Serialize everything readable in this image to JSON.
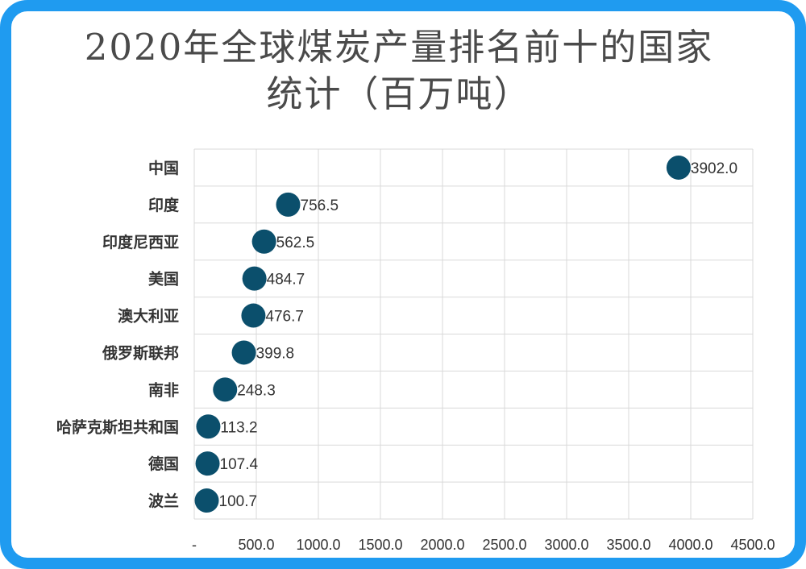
{
  "chart_data": {
    "type": "scatter",
    "title": "2020年全球煤炭产量排名前十的国家统计（百万吨）",
    "xlabel": "",
    "ylabel": "",
    "xlim": [
      0,
      4500
    ],
    "grid": true,
    "legend": "none",
    "categories": [
      "中国",
      "印度",
      "印度尼西亚",
      "美国",
      "澳大利亚",
      "俄罗斯联邦",
      "南非",
      "哈萨克斯坦共和国",
      "德国",
      "波兰"
    ],
    "values": [
      3902.0,
      756.5,
      562.5,
      484.7,
      476.7,
      399.8,
      248.3,
      113.2,
      107.4,
      100.7
    ],
    "data_labels": [
      "3902.0",
      "756.5",
      "562.5",
      "484.7",
      "476.7",
      "399.8",
      "248.3",
      "113.2",
      "107.4",
      "100.7"
    ],
    "x_tick_values": [
      0,
      500,
      1000,
      1500,
      2000,
      2500,
      3000,
      3500,
      4000,
      4500
    ],
    "x_tick_labels": [
      "-",
      "500.0",
      "1000.0",
      "1500.0",
      "2000.0",
      "2500.0",
      "3000.0",
      "3500.0",
      "4000.0",
      "4500.0"
    ],
    "colors": {
      "marker": "#0b4f6c",
      "grid": "#d9d9d9",
      "frame": "#1f9bf0"
    }
  }
}
